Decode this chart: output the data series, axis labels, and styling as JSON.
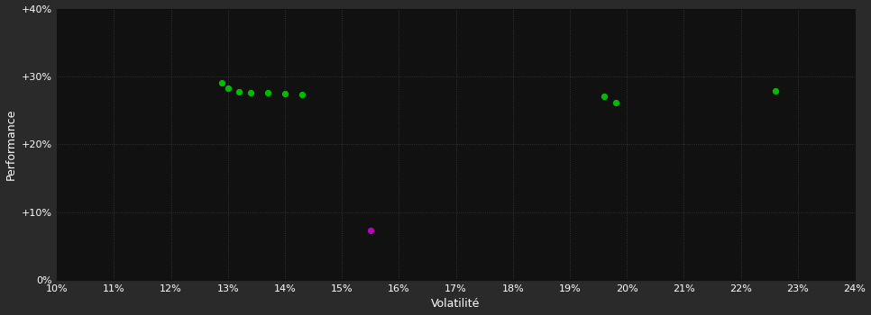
{
  "background_color": "#2a2a2a",
  "plot_bg_color": "#111111",
  "grid_color": "#444444",
  "text_color": "#ffffff",
  "xlabel": "Volatilité",
  "ylabel": "Performance",
  "xlim": [
    0.1,
    0.24
  ],
  "ylim": [
    0.0,
    0.4
  ],
  "xticks": [
    0.1,
    0.11,
    0.12,
    0.13,
    0.14,
    0.15,
    0.16,
    0.17,
    0.18,
    0.19,
    0.2,
    0.21,
    0.22,
    0.23,
    0.24
  ],
  "yticks": [
    0.0,
    0.1,
    0.2,
    0.3,
    0.4
  ],
  "ytick_labels": [
    "0%",
    "+10%",
    "+20%",
    "+30%",
    "+40%"
  ],
  "green_points": [
    [
      0.129,
      0.291
    ],
    [
      0.13,
      0.282
    ],
    [
      0.132,
      0.278
    ],
    [
      0.134,
      0.276
    ],
    [
      0.137,
      0.276
    ],
    [
      0.14,
      0.275
    ],
    [
      0.143,
      0.274
    ],
    [
      0.196,
      0.271
    ],
    [
      0.198,
      0.262
    ],
    [
      0.226,
      0.279
    ]
  ],
  "magenta_points": [
    [
      0.155,
      0.073
    ]
  ],
  "green_color": "#00bb00",
  "magenta_color": "#bb00bb",
  "marker_size": 18
}
